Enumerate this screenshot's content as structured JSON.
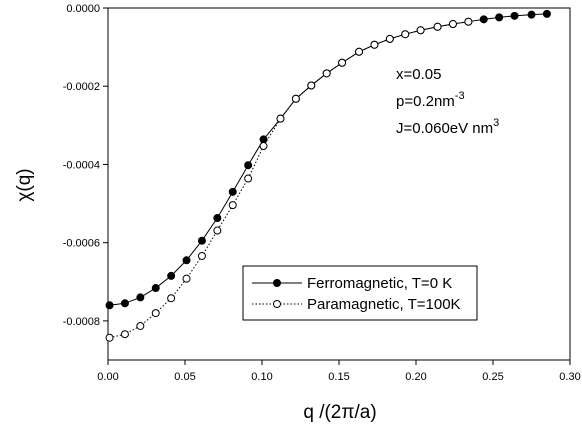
{
  "chart_data": {
    "type": "line",
    "xlabel": "q /(2π/a)",
    "ylabel": "χ(q)",
    "xlim": [
      0.0,
      0.3
    ],
    "ylim": [
      -0.0009,
      0.0
    ],
    "xticks": [
      "0.00",
      "0.05",
      "0.10",
      "0.15",
      "0.20",
      "0.25",
      "0.30"
    ],
    "xtick_values": [
      0.0,
      0.05,
      0.1,
      0.15,
      0.2,
      0.25,
      0.3
    ],
    "yticks": [
      "0.0000",
      "-0.0002",
      "-0.0004",
      "-0.0006",
      "-0.0008"
    ],
    "ytick_values": [
      0.0,
      -0.0002,
      -0.0004,
      -0.0006,
      -0.0008
    ],
    "grid": false,
    "legend_position": "lower-right",
    "annotations": {
      "x_line": "x=0.05",
      "p_base": "p=0.2nm",
      "p_sup": "-3",
      "j_base": "J=0.060eV nm",
      "j_sup": "3"
    },
    "series": [
      {
        "name": "Ferromagnetic, T=0 K",
        "line_style": "solid",
        "marker": "filled-circle",
        "x": [
          0.001,
          0.011,
          0.021,
          0.031,
          0.041,
          0.051,
          0.061,
          0.071,
          0.081,
          0.091,
          0.101,
          0.112,
          0.122,
          0.132,
          0.142,
          0.152,
          0.163,
          0.173,
          0.183,
          0.193,
          0.203,
          0.214,
          0.224,
          0.234,
          0.244,
          0.254,
          0.264,
          0.275,
          0.285
        ],
        "y": [
          -0.00076,
          -0.000755,
          -0.00074,
          -0.000716,
          -0.000685,
          -0.000645,
          -0.000595,
          -0.000537,
          -0.00047,
          -0.000402,
          -0.000336,
          -0.000283,
          -0.000232,
          -0.000198,
          -0.000167,
          -0.00014,
          -0.000112,
          -9.4e-05,
          -7.9e-05,
          -6.7e-05,
          -5.7e-05,
          -4.8e-05,
          -4.1e-05,
          -3.5e-05,
          -2.9e-05,
          -2.4e-05,
          -2e-05,
          -1.7e-05,
          -1.5e-05
        ]
      },
      {
        "name": "Paramagnetic, T=100K",
        "line_style": "dotted",
        "marker": "open-circle",
        "x": [
          0.001,
          0.011,
          0.021,
          0.031,
          0.041,
          0.051,
          0.061,
          0.071,
          0.081,
          0.091,
          0.101,
          0.112,
          0.122,
          0.132,
          0.142,
          0.152,
          0.163,
          0.173,
          0.183,
          0.193,
          0.203,
          0.214,
          0.224,
          0.234
        ],
        "y": [
          -0.000843,
          -0.000834,
          -0.000813,
          -0.00078,
          -0.000742,
          -0.000692,
          -0.000634,
          -0.000569,
          -0.000504,
          -0.000436,
          -0.000353,
          -0.000283,
          -0.000232,
          -0.000198,
          -0.000167,
          -0.00014,
          -0.000112,
          -9.4e-05,
          -7.9e-05,
          -6.7e-05,
          -5.7e-05,
          -4.8e-05,
          -4.1e-05,
          -3.5e-05
        ]
      }
    ]
  }
}
